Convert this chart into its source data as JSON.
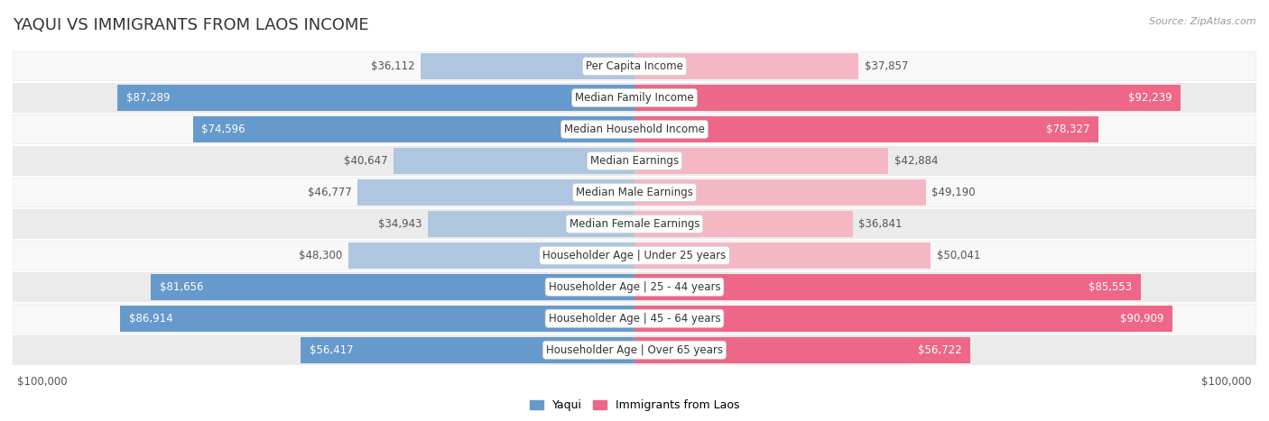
{
  "title": "YAQUI VS IMMIGRANTS FROM LAOS INCOME",
  "source": "Source: ZipAtlas.com",
  "max_value": 100000,
  "categories": [
    "Per Capita Income",
    "Median Family Income",
    "Median Household Income",
    "Median Earnings",
    "Median Male Earnings",
    "Median Female Earnings",
    "Householder Age | Under 25 years",
    "Householder Age | 25 - 44 years",
    "Householder Age | 45 - 64 years",
    "Householder Age | Over 65 years"
  ],
  "yaqui_values": [
    36112,
    87289,
    74596,
    40647,
    46777,
    34943,
    48300,
    81656,
    86914,
    56417
  ],
  "laos_values": [
    37857,
    92239,
    78327,
    42884,
    49190,
    36841,
    50041,
    85553,
    90909,
    56722
  ],
  "yaqui_labels": [
    "$36,112",
    "$87,289",
    "$74,596",
    "$40,647",
    "$46,777",
    "$34,943",
    "$48,300",
    "$81,656",
    "$86,914",
    "$56,417"
  ],
  "laos_labels": [
    "$37,857",
    "$92,239",
    "$78,327",
    "$42,884",
    "$49,190",
    "$36,841",
    "$50,041",
    "$85,553",
    "$90,909",
    "$56,722"
  ],
  "yaqui_color_light": "#aec6e0",
  "yaqui_color_dark": "#6699cc",
  "laos_color_light": "#f4b8c4",
  "laos_color_dark": "#ee6688",
  "row_bg_light": "#f8f8f8",
  "row_bg_dark": "#ebebeb",
  "background_color": "#ffffff",
  "title_fontsize": 13,
  "label_fontsize": 8.5,
  "category_fontsize": 8.5,
  "legend_fontsize": 9,
  "axis_label_fontsize": 8.5,
  "yaqui_legend": "Yaqui",
  "laos_legend": "Immigrants from Laos",
  "inside_label_threshold": 55000
}
